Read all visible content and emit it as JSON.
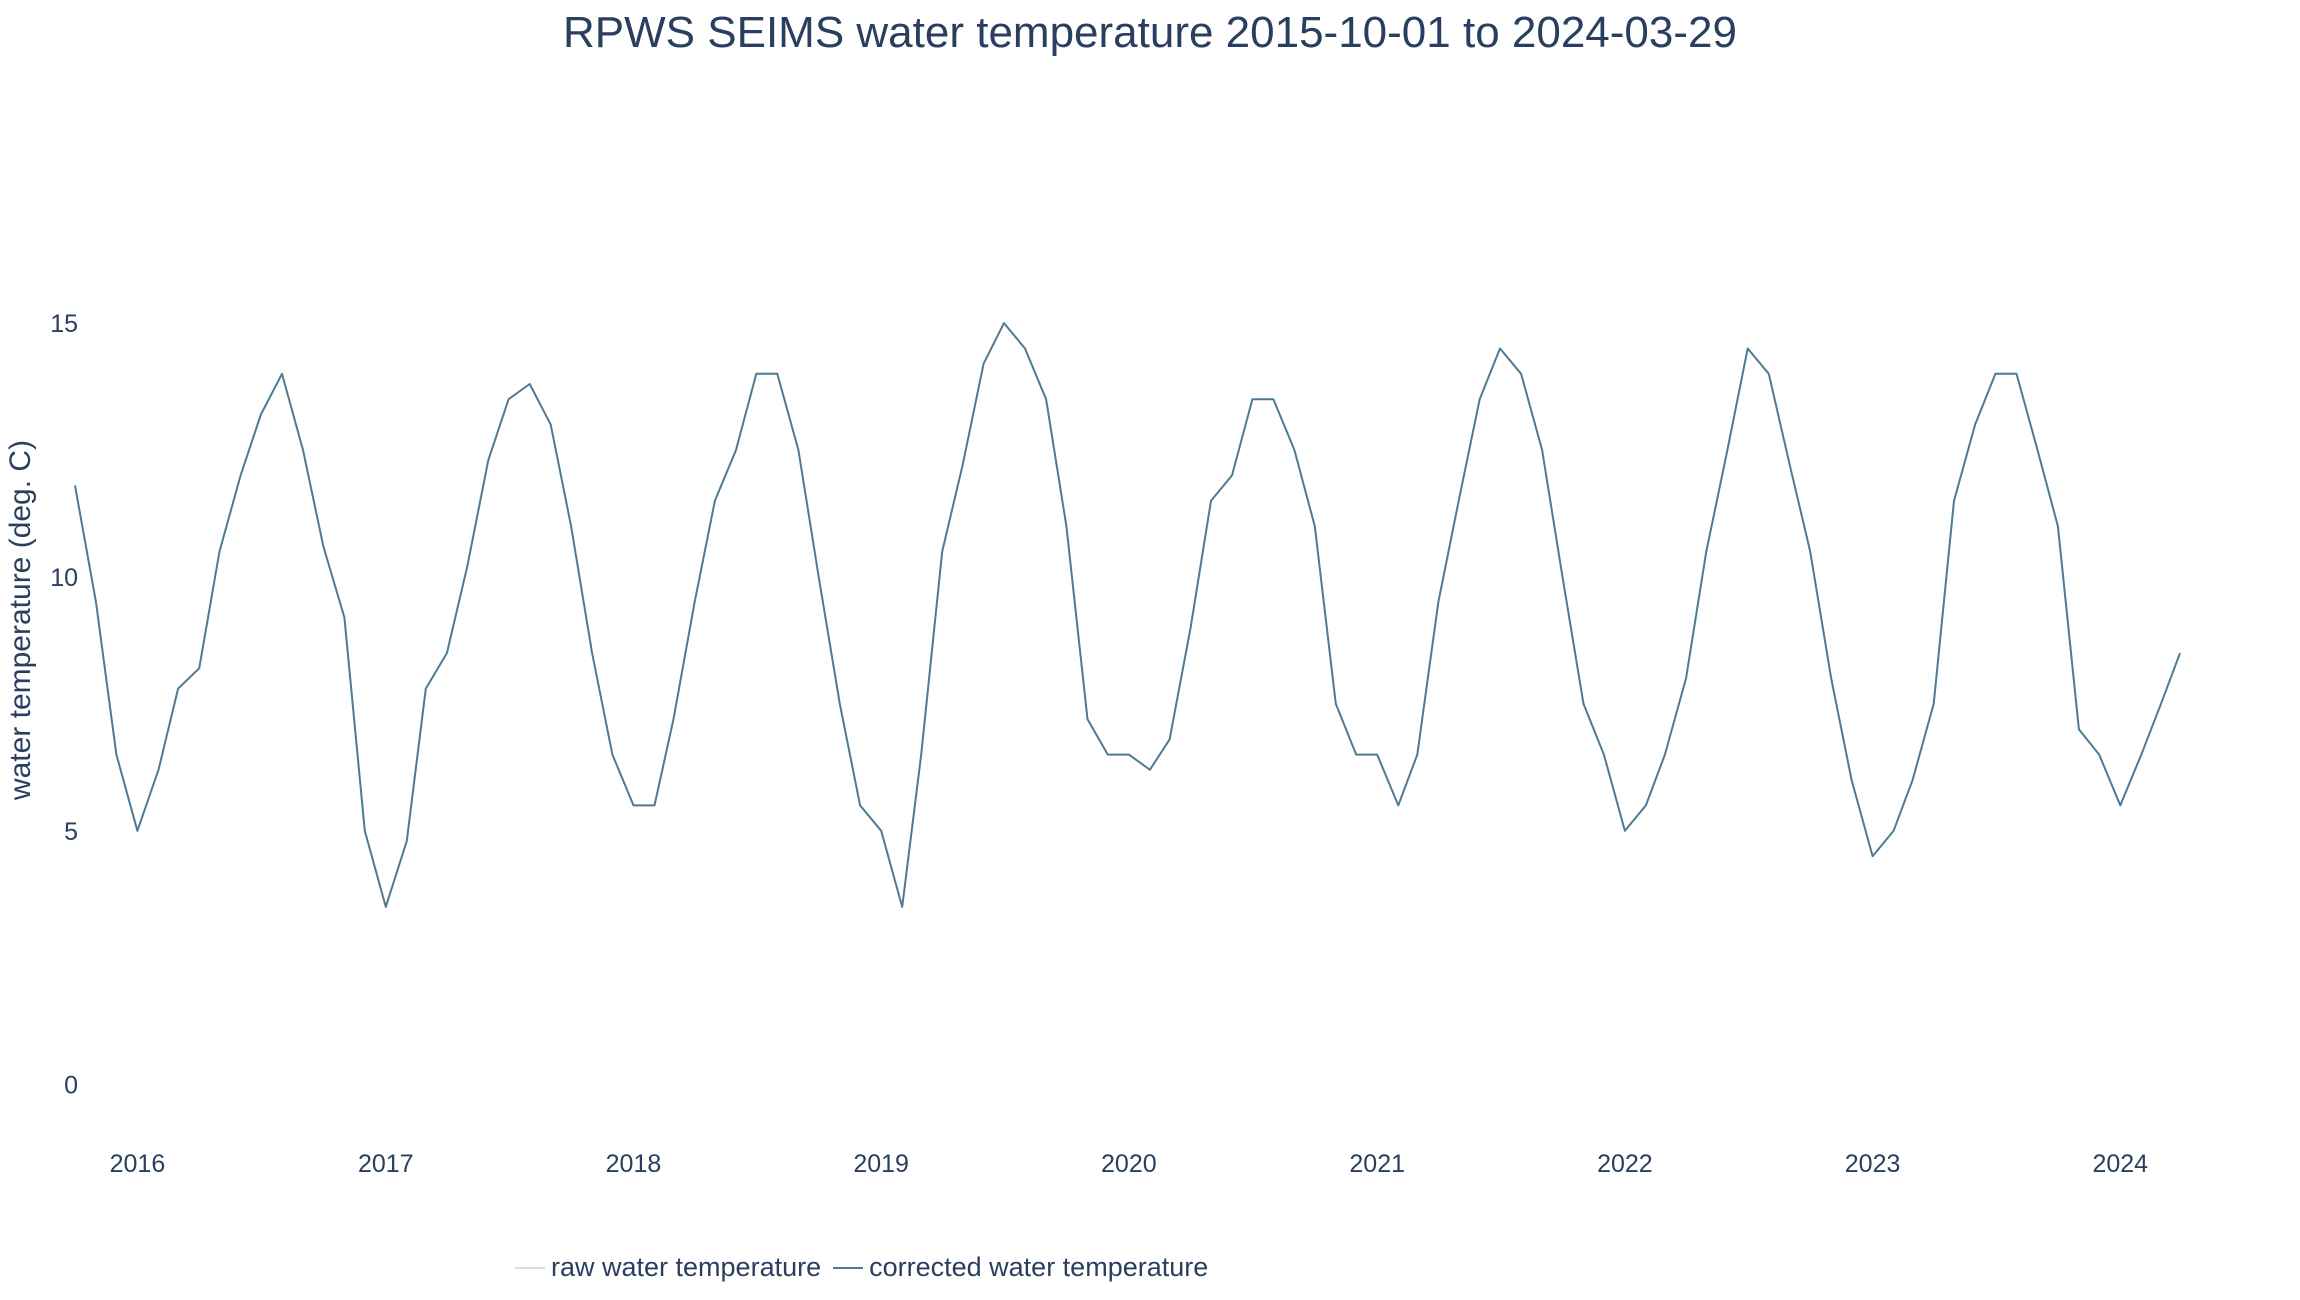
{
  "chart_data": {
    "type": "line",
    "title": "RPWS SEIMS water temperature 2015-10-01 to 2024-03-29",
    "xlabel": "",
    "ylabel": "water temperature (deg. C)",
    "x_range": [
      "2015-10-01",
      "2024-03-29"
    ],
    "ylim": [
      -0.5,
      19
    ],
    "x_ticks": [
      "2016",
      "2017",
      "2018",
      "2019",
      "2020",
      "2021",
      "2022",
      "2023",
      "2024"
    ],
    "y_ticks": [
      0,
      5,
      10,
      15
    ],
    "grid": false,
    "legend_position": "bottom",
    "colors": {
      "raw": "#d5dde4",
      "corrected": "#4e7a94",
      "text": "#2a3f5f"
    },
    "series": [
      {
        "name": "raw water temperature",
        "key": "raw",
        "x": [],
        "y": []
      },
      {
        "name": "corrected water temperature",
        "key": "corrected",
        "x": [
          "2015-10-01",
          "2015-11-01",
          "2015-12-01",
          "2016-01-01",
          "2016-02-01",
          "2016-03-01",
          "2016-04-01",
          "2016-05-01",
          "2016-06-01",
          "2016-07-01",
          "2016-08-01",
          "2016-09-01",
          "2016-10-01",
          "2016-11-01",
          "2016-12-01",
          "2017-01-01",
          "2017-02-01",
          "2017-03-01",
          "2017-04-01",
          "2017-05-01",
          "2017-06-01",
          "2017-07-01",
          "2017-08-01",
          "2017-09-01",
          "2017-10-01",
          "2017-11-01",
          "2017-12-01",
          "2018-01-01",
          "2018-02-01",
          "2018-03-01",
          "2018-04-01",
          "2018-05-01",
          "2018-06-01",
          "2018-07-01",
          "2018-08-01",
          "2018-09-01",
          "2018-10-01",
          "2018-11-01",
          "2018-12-01",
          "2019-01-01",
          "2019-02-01",
          "2019-03-01",
          "2019-04-01",
          "2019-05-01",
          "2019-06-01",
          "2019-07-01",
          "2019-08-01",
          "2019-09-01",
          "2019-10-01",
          "2019-11-01",
          "2019-12-01",
          "2020-01-01",
          "2020-02-01",
          "2020-03-01",
          "2020-04-01",
          "2020-05-01",
          "2020-06-01",
          "2020-07-01",
          "2020-08-01",
          "2020-09-01",
          "2020-10-01",
          "2020-11-01",
          "2020-12-01",
          "2021-01-01",
          "2021-02-01",
          "2021-03-01",
          "2021-04-01",
          "2021-05-01",
          "2021-06-01",
          "2021-07-01",
          "2021-08-01",
          "2021-09-01",
          "2021-10-01",
          "2021-11-01",
          "2021-12-01",
          "2022-01-01",
          "2022-02-01",
          "2022-03-01",
          "2022-04-01",
          "2022-05-01",
          "2022-06-01",
          "2022-07-01",
          "2022-08-01",
          "2022-09-01",
          "2022-10-01",
          "2022-11-01",
          "2022-12-01",
          "2023-01-01",
          "2023-02-01",
          "2023-03-01",
          "2023-04-01",
          "2023-05-01",
          "2023-06-01",
          "2023-07-01",
          "2023-08-01",
          "2023-09-01",
          "2023-10-01",
          "2023-11-01",
          "2023-12-01",
          "2024-01-01",
          "2024-02-01",
          "2024-03-01",
          "2024-03-29"
        ],
        "y": [
          11.8,
          9.5,
          6.5,
          5.0,
          6.2,
          7.8,
          8.2,
          10.5,
          12.0,
          13.2,
          14.0,
          12.5,
          10.6,
          9.2,
          5.0,
          3.5,
          4.8,
          7.8,
          8.5,
          10.2,
          12.3,
          13.5,
          13.8,
          13.0,
          11.0,
          8.5,
          6.5,
          5.5,
          5.5,
          7.2,
          9.5,
          11.5,
          12.5,
          14.0,
          14.0,
          12.5,
          10.0,
          7.5,
          5.5,
          5.0,
          3.5,
          6.5,
          10.5,
          12.2,
          14.2,
          15.0,
          14.5,
          13.5,
          11.0,
          7.2,
          6.5,
          6.5,
          6.2,
          6.8,
          9.0,
          11.5,
          12.0,
          13.5,
          13.5,
          12.5,
          11.0,
          7.5,
          6.5,
          6.5,
          5.5,
          6.5,
          9.5,
          11.5,
          13.5,
          14.5,
          14.0,
          12.5,
          10.0,
          7.5,
          6.5,
          5.0,
          5.5,
          6.5,
          8.0,
          10.5,
          12.5,
          14.5,
          14.0,
          12.2,
          10.5,
          8.0,
          6.0,
          4.5,
          5.0,
          6.0,
          7.5,
          11.5,
          13.0,
          14.0,
          14.0,
          12.5,
          11.0,
          7.0,
          6.5,
          5.5,
          6.5,
          7.5,
          8.5
        ]
      }
    ]
  }
}
